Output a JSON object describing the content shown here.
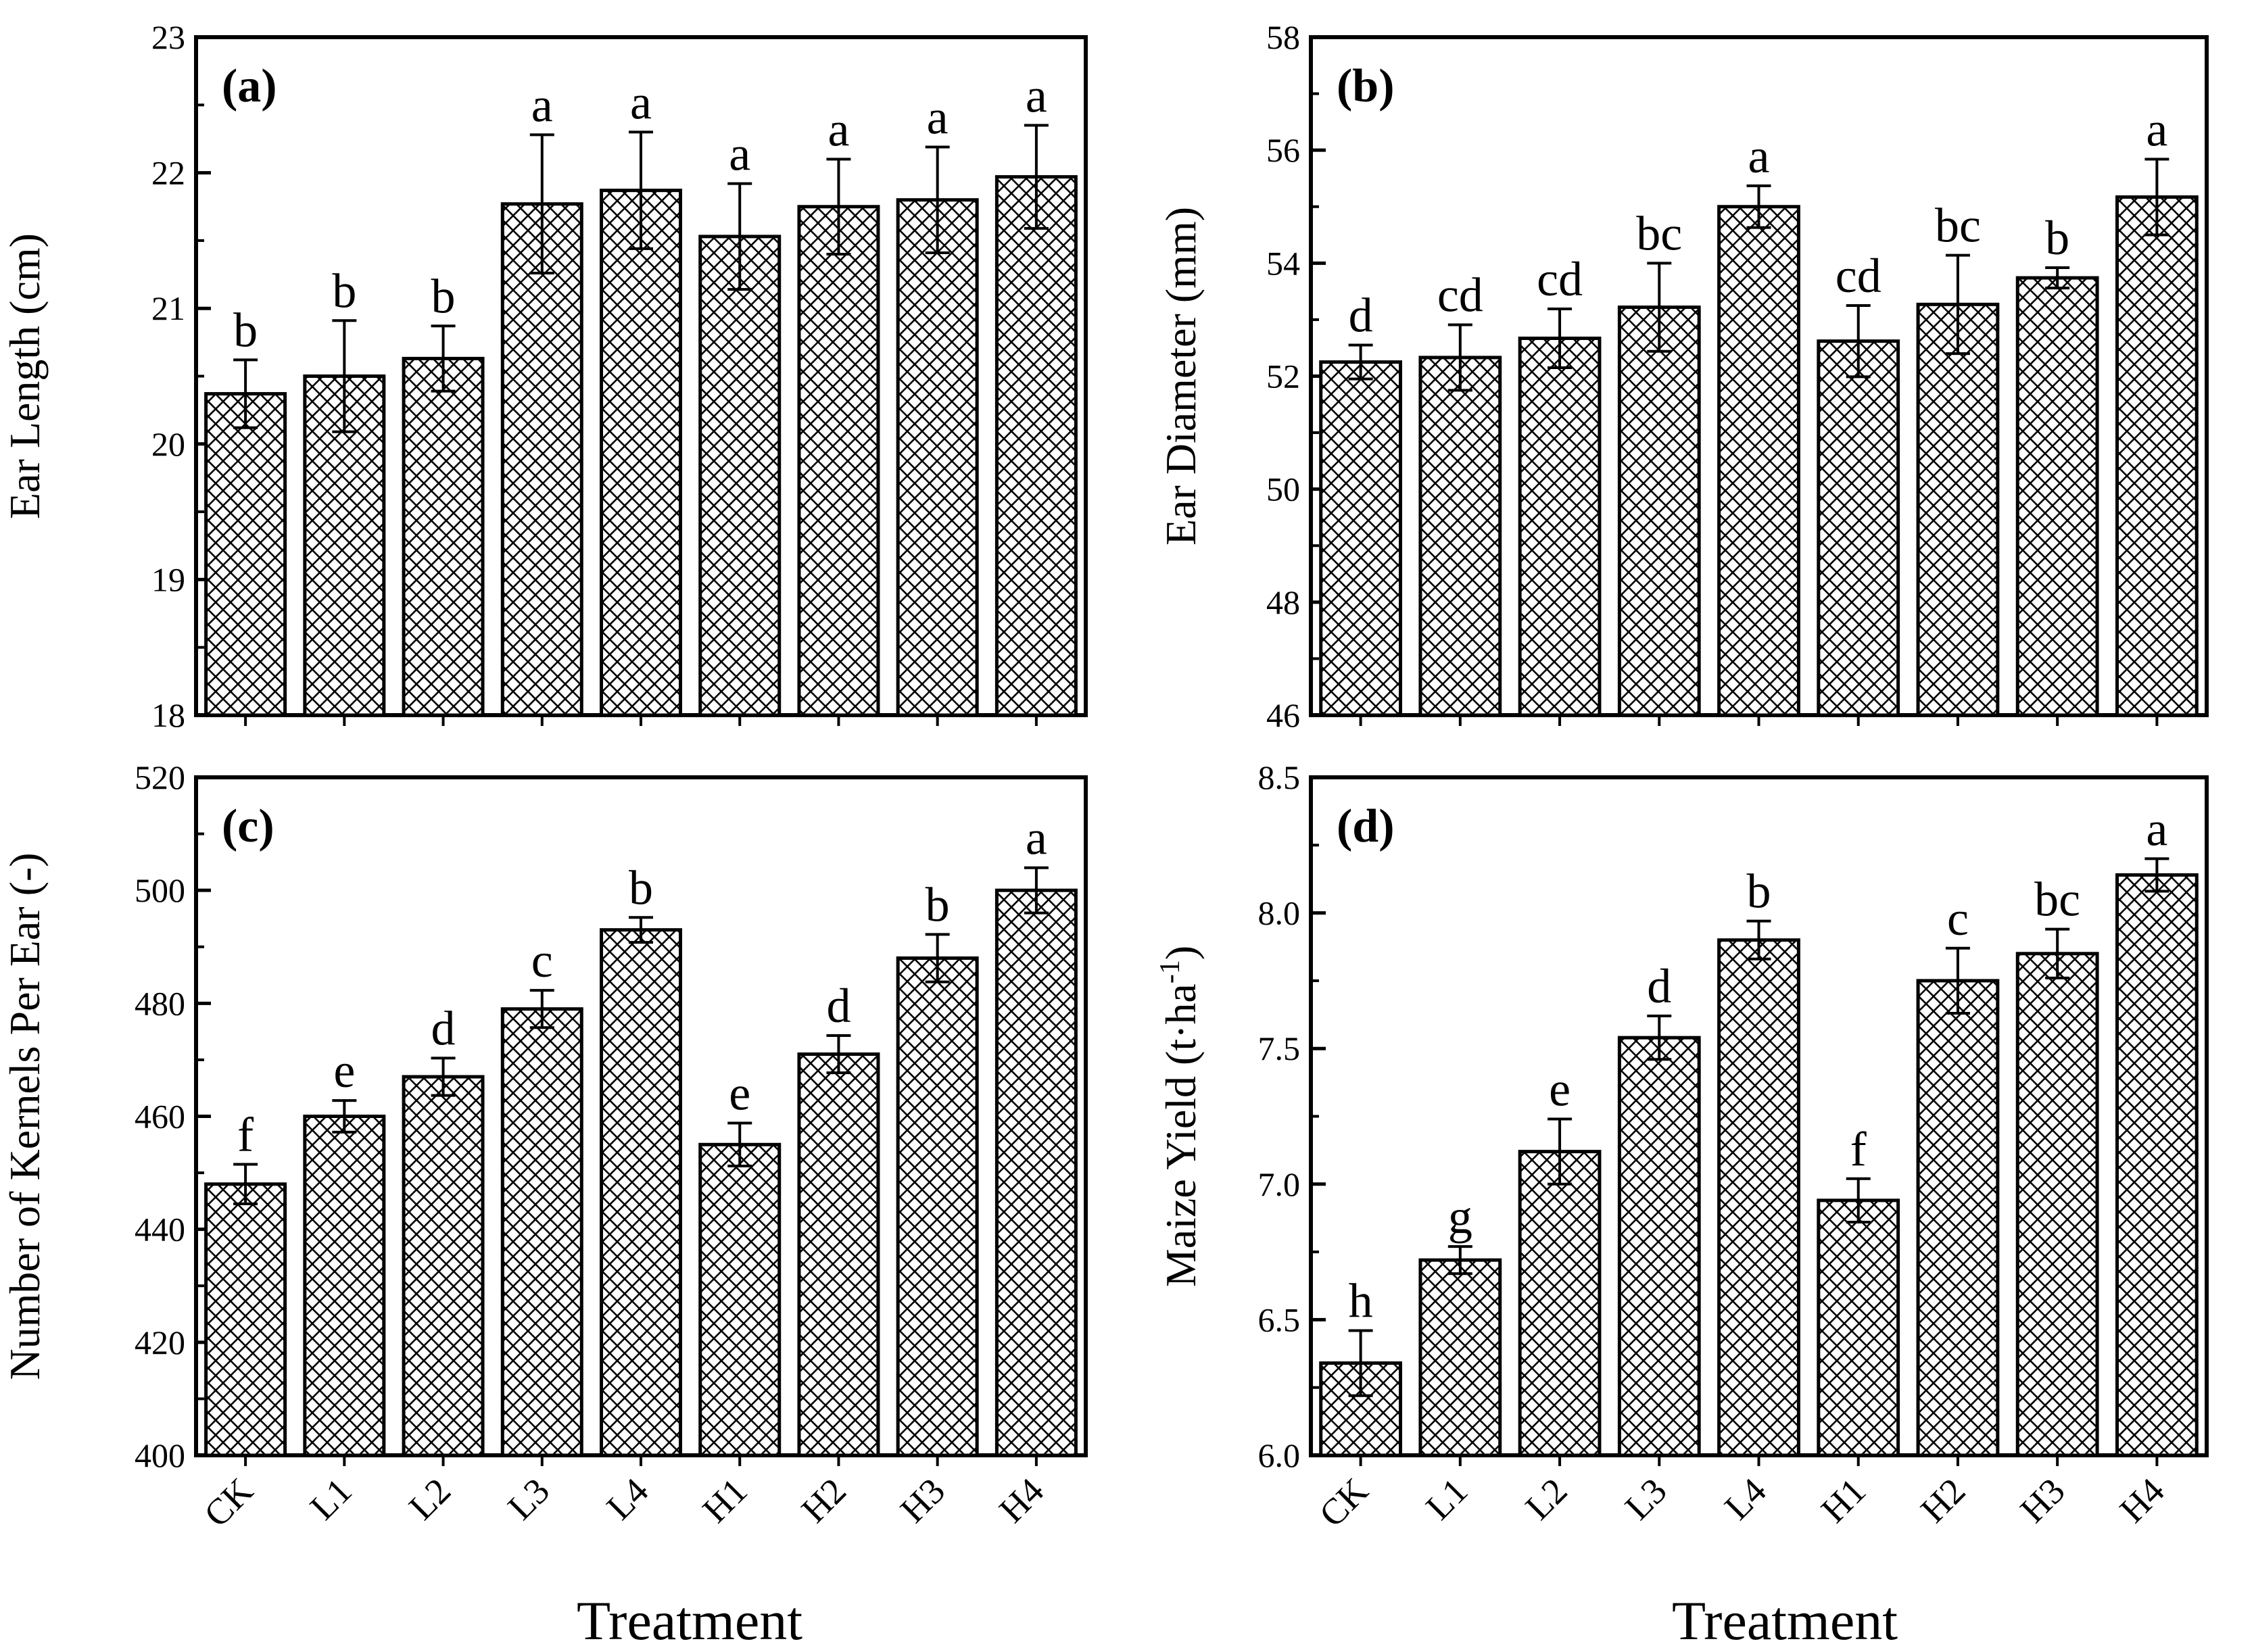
{
  "figure": {
    "x_title": "Treatment"
  },
  "chart_data": [
    {
      "type": "bar",
      "panel_label": "(a)",
      "ylabel": "Ear Length (cm)",
      "xlabel": "",
      "ylim": [
        18,
        23
      ],
      "yticks": [
        18,
        19,
        20,
        21,
        22,
        23
      ],
      "categories": [
        "CK",
        "L1",
        "L2",
        "L3",
        "L4",
        "H1",
        "H2",
        "H3",
        "H4"
      ],
      "values": [
        20.37,
        20.5,
        20.63,
        21.77,
        21.87,
        21.53,
        21.75,
        21.8,
        21.97
      ],
      "errors": [
        0.25,
        0.41,
        0.24,
        0.51,
        0.43,
        0.39,
        0.35,
        0.39,
        0.38
      ],
      "letters": [
        "b",
        "b",
        "b",
        "a",
        "a",
        "a",
        "a",
        "a",
        "a"
      ],
      "show_categories": false
    },
    {
      "type": "bar",
      "panel_label": "(b)",
      "ylabel": "Ear Diameter (mm)",
      "xlabel": "",
      "ylim": [
        46,
        58
      ],
      "yticks": [
        46,
        48,
        50,
        52,
        54,
        56,
        58
      ],
      "categories": [
        "CK",
        "L1",
        "L2",
        "L3",
        "L4",
        "H1",
        "H2",
        "H3",
        "H4"
      ],
      "values": [
        52.25,
        52.33,
        52.67,
        53.22,
        55.0,
        52.62,
        53.27,
        53.74,
        55.17
      ],
      "errors": [
        0.3,
        0.58,
        0.52,
        0.78,
        0.37,
        0.63,
        0.87,
        0.18,
        0.67
      ],
      "letters": [
        "d",
        "cd",
        "cd",
        "bc",
        "a",
        "cd",
        "bc",
        "b",
        "a"
      ],
      "show_categories": false
    },
    {
      "type": "bar",
      "panel_label": "(c)",
      "ylabel": "Number of Kernels Per Ear (-)",
      "xlabel": "Treatment",
      "ylim": [
        400,
        520
      ],
      "yticks": [
        400,
        420,
        440,
        460,
        480,
        500,
        520
      ],
      "categories": [
        "CK",
        "L1",
        "L2",
        "L3",
        "L4",
        "H1",
        "H2",
        "H3",
        "H4"
      ],
      "values": [
        448,
        460,
        467,
        479,
        493,
        455,
        471,
        488,
        500
      ],
      "errors": [
        3.5,
        2.8,
        3.3,
        3.3,
        2.2,
        3.8,
        3.3,
        4.2,
        4.0
      ],
      "letters": [
        "f",
        "e",
        "d",
        "c",
        "b",
        "e",
        "d",
        "b",
        "a"
      ],
      "show_categories": true
    },
    {
      "type": "bar",
      "panel_label": "(d)",
      "ylabel": "Maize Yield (t·ha",
      "ylabel_sup": "-1",
      "ylabel_close": ")",
      "xlabel": "Treatment",
      "ylim": [
        6.0,
        8.5
      ],
      "yticks": [
        "6.0",
        "6.5",
        "7.0",
        "7.5",
        "8.0",
        "8.5"
      ],
      "categories": [
        "CK",
        "L1",
        "L2",
        "L3",
        "L4",
        "H1",
        "H2",
        "H3",
        "H4"
      ],
      "values": [
        6.34,
        6.72,
        7.12,
        7.54,
        7.9,
        6.94,
        7.75,
        7.85,
        8.14
      ],
      "errors": [
        0.12,
        0.05,
        0.12,
        0.08,
        0.07,
        0.08,
        0.12,
        0.09,
        0.06
      ],
      "letters": [
        "h",
        "g",
        "e",
        "d",
        "b",
        "f",
        "c",
        "bc",
        "a"
      ],
      "show_categories": true
    }
  ]
}
